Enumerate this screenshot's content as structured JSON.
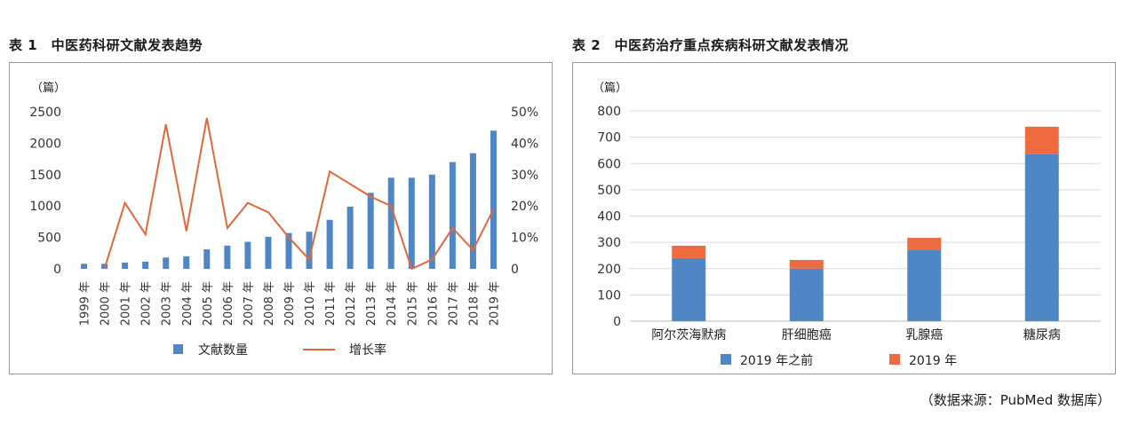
{
  "left": {
    "title": "表 1　中医药科研文献发表趋势",
    "chart_data": {
      "type": "bar",
      "unit_label": "（篇）",
      "categories": [
        "1999 年",
        "2000 年",
        "2001 年",
        "2002 年",
        "2003 年",
        "2004 年",
        "2005 年",
        "2006 年",
        "2007 年",
        "2008 年",
        "2009 年",
        "2010 年",
        "2011 年",
        "2012 年",
        "2013 年",
        "2014 年",
        "2015 年",
        "2016 年",
        "2017 年",
        "2018 年",
        "2019 年"
      ],
      "series": [
        {
          "name": "文献数量",
          "kind": "bar",
          "axis": "left",
          "color": "#4f86c6",
          "values": [
            80,
            80,
            100,
            115,
            180,
            200,
            310,
            370,
            430,
            510,
            570,
            590,
            780,
            990,
            1210,
            1450,
            1450,
            1500,
            1700,
            1840,
            2200
          ]
        },
        {
          "name": "增长率",
          "kind": "line",
          "axis": "right",
          "color": "#e2683c",
          "values": [
            null,
            0,
            21,
            11,
            46,
            12,
            48,
            13,
            21,
            18,
            10,
            3,
            31,
            27,
            23,
            20,
            0,
            3,
            13,
            6,
            19
          ]
        }
      ],
      "ylim": [
        0,
        2500
      ],
      "yticks": [
        "0",
        "500",
        "1000",
        "1500",
        "2000",
        "2500"
      ],
      "y2lim": [
        0,
        50
      ],
      "y2ticks": [
        "0",
        "10%",
        "20%",
        "30%",
        "40%",
        "50%"
      ],
      "legend": "bottom",
      "grid": false
    }
  },
  "right": {
    "title": "表 2　中医药治疗重点疾病科研文献发表情况",
    "chart_data": {
      "type": "bar",
      "stacked": true,
      "unit_label": "（篇）",
      "categories": [
        "阿尔茨海默病",
        "肝细胞癌",
        "乳腺癌",
        "糖尿病"
      ],
      "series": [
        {
          "name": "2019 年之前",
          "color": "#4f86c6",
          "values": [
            240,
            200,
            270,
            635
          ]
        },
        {
          "name": "2019 年",
          "color": "#ee6a3f",
          "values": [
            47,
            33,
            47,
            105
          ]
        }
      ],
      "ylim": [
        0,
        800
      ],
      "yticks": [
        "0",
        "100",
        "200",
        "300",
        "400",
        "500",
        "600",
        "700",
        "800"
      ],
      "legend": "bottom",
      "grid": true
    }
  },
  "source_text": "（数据来源：PubMed 数据库）"
}
